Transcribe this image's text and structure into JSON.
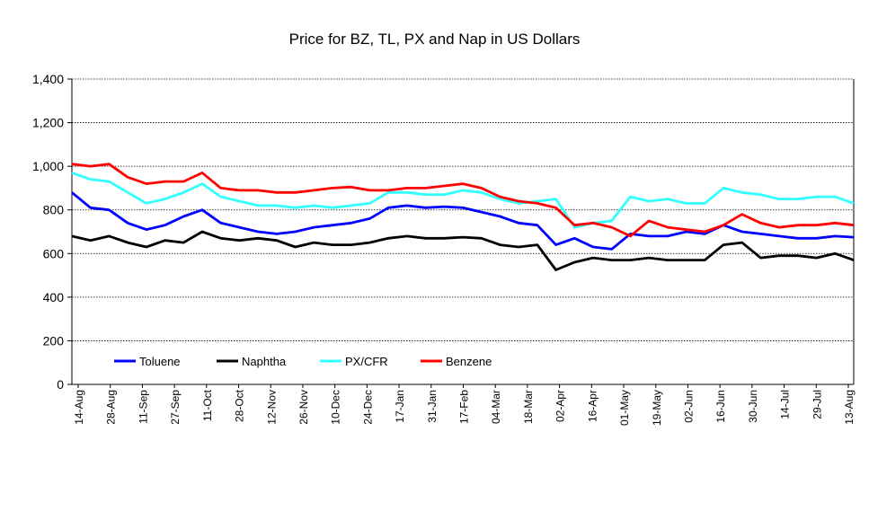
{
  "chart_data": {
    "type": "line",
    "title": "Price for BZ, TL, PX and Nap in US Dollars",
    "xlabel": "",
    "ylabel": "",
    "ylim": [
      0,
      1400
    ],
    "yticks": [
      0,
      200,
      400,
      600,
      800,
      1000,
      1200,
      1400
    ],
    "ytick_labels": [
      "0",
      "200",
      "400",
      "600",
      "800",
      "1,000",
      "1,200",
      "1,400"
    ],
    "x_tick_labels": [
      "14-Aug",
      "28-Aug",
      "11-Sep",
      "27-Sep",
      "11-Oct",
      "28-Oct",
      "12-Nov",
      "26-Nov",
      "10-Dec",
      "24-Dec",
      "17-Jan",
      "31-Jan",
      "17-Feb",
      "04-Mar",
      "18-Mar",
      "02-Apr",
      "16-Apr",
      "01-May",
      "19-May",
      "02-Jun",
      "16-Jun",
      "30-Jun",
      "14-Jul",
      "29-Jul",
      "13-Aug"
    ],
    "grid": "horizontal",
    "legend_position": "bottom-left",
    "series": [
      {
        "name": "Toluene",
        "color": "#0000ff",
        "values": [
          880,
          810,
          800,
          740,
          710,
          730,
          770,
          800,
          740,
          720,
          700,
          690,
          700,
          720,
          730,
          740,
          760,
          810,
          820,
          810,
          815,
          810,
          790,
          770,
          740,
          730,
          640,
          670,
          630,
          620,
          690,
          680,
          680,
          700,
          690,
          730,
          700,
          690,
          680,
          670,
          670,
          680,
          675
        ]
      },
      {
        "name": "Naphtha",
        "color": "#000000",
        "values": [
          680,
          660,
          680,
          650,
          630,
          660,
          650,
          700,
          670,
          660,
          670,
          660,
          630,
          650,
          640,
          640,
          650,
          670,
          680,
          670,
          670,
          675,
          670,
          640,
          630,
          640,
          525,
          560,
          580,
          570,
          570,
          580,
          570,
          570,
          570,
          640,
          650,
          580,
          590,
          590,
          580,
          600,
          570
        ]
      },
      {
        "name": "PX/CFR",
        "color": "#33ffff",
        "values": [
          970,
          940,
          930,
          880,
          830,
          850,
          880,
          920,
          860,
          840,
          820,
          820,
          810,
          820,
          810,
          820,
          830,
          880,
          880,
          870,
          870,
          890,
          880,
          850,
          830,
          840,
          850,
          720,
          740,
          750,
          860,
          840,
          850,
          830,
          830,
          900,
          880,
          870,
          850,
          850,
          860,
          860,
          830
        ]
      },
      {
        "name": "Benzene",
        "color": "#ff0000",
        "values": [
          1010,
          1000,
          1010,
          950,
          920,
          930,
          930,
          970,
          900,
          890,
          890,
          880,
          880,
          890,
          900,
          905,
          890,
          890,
          900,
          900,
          910,
          920,
          900,
          860,
          840,
          830,
          810,
          730,
          740,
          720,
          680,
          750,
          720,
          710,
          700,
          730,
          780,
          740,
          720,
          730,
          730,
          740,
          730
        ]
      }
    ]
  }
}
